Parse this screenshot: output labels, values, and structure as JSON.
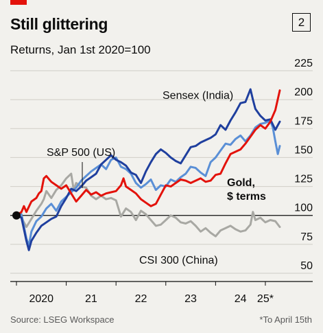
{
  "header": {
    "title": "Still glittering",
    "subtitle": "Returns, Jan 1st 2020=100",
    "chart_number": "2"
  },
  "footer": {
    "source": "Source: LSEG Workspace",
    "footnote": "*To April 15th"
  },
  "colors": {
    "background": "#f2f1ed",
    "gold": "#e3120b",
    "sensex": "#1f3f9e",
    "sp500": "#5a8fd6",
    "csi300": "#a8a8a3",
    "accent": "#e3120b"
  },
  "chart_data": {
    "type": "line",
    "title": "Still glittering",
    "subtitle": "Returns, Jan 1st 2020=100",
    "x_tick_labels": [
      "2020",
      "21",
      "22",
      "23",
      "24",
      "25*"
    ],
    "x_ticks": [
      2020,
      2021,
      2022,
      2023,
      2024,
      2025
    ],
    "xlim": [
      2020,
      2025.29
    ],
    "y_ticks": [
      50,
      75,
      100,
      125,
      150,
      175,
      200,
      225
    ],
    "ylim": [
      50,
      225
    ],
    "y_axis_side": "right",
    "reference_value": 100,
    "series": [
      {
        "name": "CSI 300 (China)",
        "label": "CSI 300 (China)",
        "color": "#a8a8a3",
        "x": [
          2020.0,
          2020.1,
          2020.2,
          2020.3,
          2020.4,
          2020.5,
          2020.55,
          2020.6,
          2020.7,
          2020.8,
          2020.9,
          2021.0,
          2021.1,
          2021.15,
          2021.2,
          2021.3,
          2021.4,
          2021.5,
          2021.6,
          2021.7,
          2021.8,
          2021.9,
          2022.0,
          2022.1,
          2022.2,
          2022.3,
          2022.4,
          2022.5,
          2022.6,
          2022.7,
          2022.8,
          2022.9,
          2023.0,
          2023.1,
          2023.2,
          2023.3,
          2023.4,
          2023.5,
          2023.6,
          2023.7,
          2023.8,
          2023.9,
          2024.0,
          2024.1,
          2024.2,
          2024.3,
          2024.4,
          2024.5,
          2024.6,
          2024.7,
          2024.75,
          2024.8,
          2024.9,
          2025.0,
          2025.1,
          2025.2,
          2025.29
        ],
        "y": [
          100,
          98,
          90,
          97,
          104,
          110,
          114,
          121,
          115,
          122,
          126,
          132,
          136,
          122,
          128,
          125,
          124,
          117,
          114,
          117,
          114,
          115,
          113,
          99,
          106,
          103,
          96,
          104,
          101,
          96,
          91,
          92,
          96,
          100,
          98,
          94,
          93,
          95,
          91,
          86,
          89,
          85,
          82,
          87,
          89,
          91,
          88,
          86,
          87,
          92,
          103,
          96,
          98,
          94,
          96,
          95,
          90
        ]
      },
      {
        "name": "S&P 500 (US)",
        "label": "S&P 500 (US)",
        "color": "#5a8fd6",
        "x": [
          2020.0,
          2020.1,
          2020.2,
          2020.25,
          2020.3,
          2020.4,
          2020.5,
          2020.6,
          2020.7,
          2020.8,
          2020.9,
          2021.0,
          2021.1,
          2021.2,
          2021.3,
          2021.4,
          2021.5,
          2021.6,
          2021.7,
          2021.8,
          2021.9,
          2022.0,
          2022.1,
          2022.2,
          2022.3,
          2022.4,
          2022.5,
          2022.6,
          2022.7,
          2022.8,
          2022.9,
          2023.0,
          2023.1,
          2023.2,
          2023.3,
          2023.4,
          2023.5,
          2023.6,
          2023.7,
          2023.8,
          2023.9,
          2024.0,
          2024.1,
          2024.2,
          2024.3,
          2024.4,
          2024.5,
          2024.6,
          2024.7,
          2024.8,
          2024.9,
          2025.0,
          2025.1,
          2025.15,
          2025.2,
          2025.25,
          2025.29
        ],
        "y": [
          100,
          101,
          80,
          74,
          86,
          95,
          99,
          106,
          110,
          104,
          112,
          116,
          120,
          124,
          130,
          134,
          138,
          141,
          144,
          140,
          148,
          150,
          142,
          140,
          136,
          128,
          124,
          127,
          131,
          122,
          126,
          125,
          131,
          129,
          133,
          136,
          142,
          141,
          137,
          134,
          146,
          150,
          156,
          162,
          161,
          166,
          169,
          164,
          169,
          176,
          179,
          180,
          182,
          176,
          164,
          153,
          160
        ]
      },
      {
        "name": "Sensex (India)",
        "label": "Sensex (India)",
        "color": "#1f3f9e",
        "x": [
          2020.0,
          2020.1,
          2020.2,
          2020.25,
          2020.3,
          2020.4,
          2020.5,
          2020.6,
          2020.7,
          2020.8,
          2020.9,
          2021.0,
          2021.1,
          2021.2,
          2021.3,
          2021.4,
          2021.5,
          2021.6,
          2021.7,
          2021.8,
          2021.9,
          2022.0,
          2022.1,
          2022.2,
          2022.3,
          2022.4,
          2022.5,
          2022.6,
          2022.7,
          2022.8,
          2022.9,
          2023.0,
          2023.1,
          2023.2,
          2023.3,
          2023.4,
          2023.5,
          2023.6,
          2023.7,
          2023.8,
          2023.9,
          2024.0,
          2024.1,
          2024.2,
          2024.3,
          2024.4,
          2024.5,
          2024.6,
          2024.7,
          2024.75,
          2024.8,
          2024.9,
          2025.0,
          2025.1,
          2025.2,
          2025.29
        ],
        "y": [
          100,
          98,
          78,
          70,
          78,
          85,
          91,
          94,
          97,
          99,
          108,
          115,
          123,
          121,
          125,
          130,
          133,
          136,
          144,
          148,
          152,
          148,
          146,
          143,
          137,
          135,
          128,
          138,
          146,
          153,
          157,
          154,
          150,
          147,
          145,
          152,
          159,
          160,
          163,
          165,
          167,
          170,
          178,
          174,
          182,
          189,
          197,
          198,
          209,
          200,
          192,
          186,
          182,
          183,
          174,
          181
        ]
      },
      {
        "name": "Gold, $ terms",
        "label": "Gold, $ terms",
        "color": "#e3120b",
        "x": [
          2020.0,
          2020.1,
          2020.15,
          2020.2,
          2020.3,
          2020.4,
          2020.45,
          2020.5,
          2020.55,
          2020.6,
          2020.7,
          2020.8,
          2020.9,
          2021.0,
          2021.1,
          2021.2,
          2021.3,
          2021.4,
          2021.5,
          2021.6,
          2021.7,
          2021.8,
          2021.9,
          2022.0,
          2022.1,
          2022.15,
          2022.2,
          2022.3,
          2022.4,
          2022.5,
          2022.6,
          2022.7,
          2022.8,
          2022.9,
          2023.0,
          2023.1,
          2023.2,
          2023.3,
          2023.4,
          2023.5,
          2023.6,
          2023.7,
          2023.8,
          2023.9,
          2024.0,
          2024.1,
          2024.2,
          2024.3,
          2024.4,
          2024.5,
          2024.6,
          2024.7,
          2024.8,
          2024.9,
          2025.0,
          2025.1,
          2025.2,
          2025.29
        ],
        "y": [
          100,
          103,
          108,
          103,
          112,
          115,
          119,
          121,
          132,
          134,
          129,
          126,
          123,
          126,
          119,
          112,
          117,
          122,
          118,
          120,
          117,
          119,
          120,
          121,
          126,
          132,
          125,
          122,
          119,
          114,
          111,
          108,
          110,
          118,
          126,
          125,
          128,
          131,
          130,
          128,
          130,
          132,
          129,
          130,
          135,
          136,
          145,
          153,
          155,
          157,
          162,
          168,
          174,
          178,
          175,
          181,
          191,
          208
        ]
      }
    ],
    "labels": {
      "sensex": "Sensex (India)",
      "sp500": "S&P 500 (US)",
      "csi300": "CSI 300 (China)",
      "gold_line1": "Gold,",
      "gold_line2": "$ terms"
    },
    "grid": "horizontal",
    "legend": "inline labels"
  }
}
